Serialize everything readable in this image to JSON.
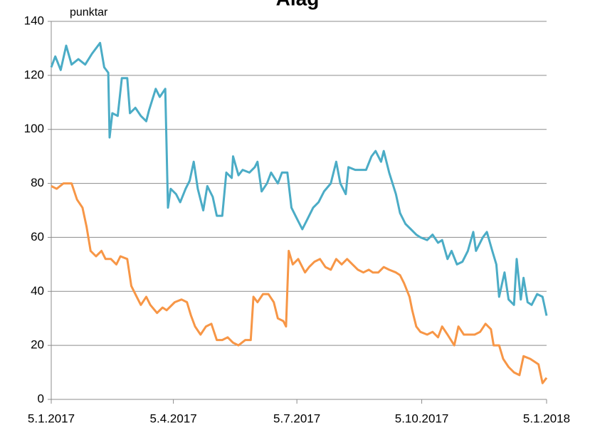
{
  "chart_data": {
    "type": "line",
    "title": "Álag",
    "ylabel": "punktar",
    "xlim": [
      0,
      365
    ],
    "xticks": [
      {
        "value": 0,
        "label": "5.1.2017"
      },
      {
        "value": 90,
        "label": "5.4.2017"
      },
      {
        "value": 181,
        "label": "5.7.2017"
      },
      {
        "value": 273,
        "label": "5.10.2017"
      },
      {
        "value": 365,
        "label": "5.1.2018"
      }
    ],
    "ylim": [
      0,
      140
    ],
    "yticks": [
      0,
      20,
      40,
      60,
      80,
      100,
      120,
      140
    ],
    "grid": true,
    "series": [
      {
        "color": "#4bacc6",
        "x": [
          0,
          3,
          7,
          11,
          15,
          20,
          25,
          30,
          36,
          39,
          42,
          43,
          45,
          49,
          52,
          56,
          58,
          62,
          66,
          70,
          72,
          77,
          80,
          84,
          86,
          88,
          92,
          95,
          99,
          102,
          105,
          108,
          112,
          115,
          119,
          122,
          126,
          129,
          133,
          134,
          138,
          141,
          146,
          150,
          152,
          155,
          159,
          162,
          167,
          170,
          174,
          177,
          181,
          185,
          189,
          193,
          197,
          201,
          206,
          210,
          213,
          217,
          219,
          224,
          228,
          232,
          236,
          239,
          243,
          245,
          249,
          254,
          257,
          261,
          265,
          269,
          272,
          277,
          281,
          285,
          288,
          292,
          295,
          299,
          303,
          307,
          311,
          313,
          318,
          321,
          325,
          328,
          330,
          334,
          337,
          341,
          343,
          346,
          348,
          351,
          354,
          358,
          362,
          365
        ],
        "values": [
          123,
          127,
          122,
          131,
          124,
          126,
          124,
          128,
          132,
          123,
          121,
          97,
          106,
          105,
          119,
          119,
          106,
          108,
          105,
          103,
          107,
          115,
          112,
          115,
          71,
          78,
          76,
          73,
          78,
          81,
          88,
          78,
          70,
          79,
          75,
          68,
          68,
          84,
          82,
          90,
          83,
          85,
          84,
          86,
          88,
          77,
          80,
          84,
          80,
          84,
          84,
          71,
          67,
          63,
          67,
          71,
          73,
          77,
          80,
          88,
          80,
          76,
          86,
          85,
          85,
          85,
          90,
          92,
          88,
          92,
          84,
          76,
          69,
          65,
          63,
          61,
          60,
          59,
          61,
          58,
          59,
          52,
          55,
          50,
          51,
          55,
          62,
          55,
          60,
          62,
          55,
          50,
          38,
          47,
          37,
          35,
          52,
          37,
          45,
          36,
          35,
          39,
          38,
          31
        ]
      },
      {
        "color": "#f79646",
        "x": [
          0,
          4,
          9,
          15,
          19,
          23,
          26,
          29,
          33,
          37,
          40,
          44,
          48,
          51,
          56,
          59,
          63,
          66,
          70,
          73,
          78,
          82,
          85,
          91,
          96,
          100,
          103,
          106,
          110,
          114,
          118,
          122,
          126,
          130,
          134,
          138,
          143,
          147,
          149,
          152,
          156,
          160,
          164,
          167,
          171,
          173,
          175,
          178,
          182,
          187,
          190,
          194,
          198,
          202,
          206,
          210,
          214,
          218,
          222,
          226,
          230,
          234,
          237,
          241,
          245,
          249,
          254,
          257,
          260,
          264,
          266,
          269,
          272,
          277,
          281,
          285,
          288,
          292,
          297,
          300,
          304,
          308,
          312,
          316,
          320,
          324,
          326,
          330,
          333,
          337,
          341,
          345,
          348,
          353,
          356,
          359,
          362,
          365
        ],
        "values": [
          79,
          78,
          80,
          80,
          74,
          71,
          64,
          55,
          53,
          55,
          52,
          52,
          50,
          53,
          52,
          42,
          38,
          35,
          38,
          35,
          32,
          34,
          33,
          36,
          37,
          36,
          31,
          27,
          24,
          27,
          28,
          22,
          22,
          23,
          21,
          20,
          22,
          22,
          38,
          36,
          39,
          39,
          36,
          30,
          29,
          27,
          55,
          50,
          52,
          47,
          49,
          51,
          52,
          49,
          48,
          52,
          50,
          52,
          50,
          48,
          47,
          48,
          47,
          47,
          49,
          48,
          47,
          46,
          43,
          38,
          33,
          27,
          25,
          24,
          25,
          23,
          27,
          24,
          20,
          27,
          24,
          24,
          24,
          25,
          28,
          26,
          20,
          20,
          15,
          12,
          10,
          9,
          16,
          15,
          14,
          13,
          6,
          8
        ]
      }
    ]
  }
}
